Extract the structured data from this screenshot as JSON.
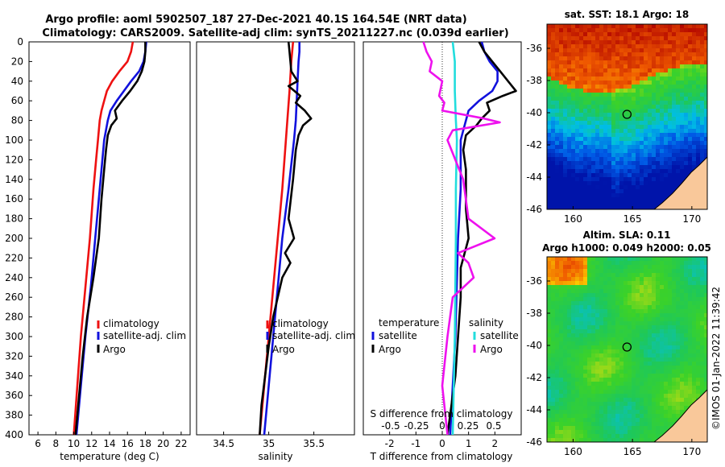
{
  "header": {
    "line1": "Argo profile: aoml 5902507_187 27-Dec-2021 40.1S 164.54E (NRT data)",
    "line2": "Climatology: CARS2009. Satellite-adj clim: synTS_20211227.nc (0.039d earlier)"
  },
  "colors": {
    "climatology": "#ee1111",
    "satellite": "#1111dd",
    "argo": "#000000",
    "sal_satellite": "#22dddd",
    "sal_argo": "#ee11ee"
  },
  "depth_ticks": [
    0,
    20,
    40,
    60,
    80,
    100,
    120,
    140,
    160,
    180,
    200,
    220,
    240,
    260,
    280,
    300,
    320,
    340,
    360,
    380,
    400
  ],
  "chart_data": [
    {
      "type": "line",
      "name": "temperature",
      "xlabel": "temperature (deg C)",
      "ylabel": "",
      "xlim": [
        5,
        23
      ],
      "ylim": [
        400,
        0
      ],
      "xticks": [
        6,
        8,
        10,
        12,
        14,
        16,
        18,
        20,
        22
      ],
      "legend": [
        "climatology",
        "satellite-adj. clim",
        "Argo"
      ],
      "series": [
        {
          "name": "climatology",
          "depth": [
            0,
            10,
            20,
            30,
            40,
            50,
            60,
            70,
            80,
            100,
            120,
            150,
            200,
            250,
            300,
            350,
            400
          ],
          "values": [
            16.6,
            16.4,
            16.0,
            15.1,
            14.3,
            13.7,
            13.4,
            13.1,
            12.9,
            12.7,
            12.5,
            12.2,
            11.8,
            11.3,
            10.8,
            10.4,
            10.0
          ]
        },
        {
          "name": "satellite-adj. clim",
          "depth": [
            0,
            10,
            20,
            30,
            40,
            50,
            60,
            70,
            80,
            100,
            120,
            150,
            200,
            250,
            300,
            350,
            400
          ],
          "values": [
            18.1,
            18.0,
            17.8,
            17.3,
            16.4,
            15.6,
            14.8,
            14.1,
            13.8,
            13.4,
            13.2,
            12.9,
            12.4,
            11.9,
            11.3,
            10.8,
            10.3
          ]
        },
        {
          "name": "Argo",
          "depth": [
            0,
            10,
            20,
            30,
            40,
            50,
            60,
            70,
            78,
            85,
            95,
            110,
            130,
            160,
            200,
            240,
            280,
            320,
            360,
            400
          ],
          "values": [
            18.0,
            18.0,
            17.9,
            17.6,
            17.1,
            16.3,
            15.4,
            14.6,
            14.8,
            14.2,
            13.8,
            13.6,
            13.4,
            13.1,
            12.8,
            12.2,
            11.5,
            11.0,
            10.6,
            10.2
          ]
        }
      ]
    },
    {
      "type": "line",
      "name": "salinity",
      "xlabel": "salinity",
      "ylabel": "",
      "xlim": [
        34.2,
        35.95
      ],
      "ylim": [
        400,
        0
      ],
      "xticks": [
        34.5,
        35,
        35.5
      ],
      "xtick_labels": [
        "34.5",
        "35",
        "35.5"
      ],
      "legend": [
        "climatology",
        "satellite-adj. clim",
        "Argo"
      ],
      "series": [
        {
          "name": "climatology",
          "depth": [
            0,
            20,
            50,
            100,
            150,
            200,
            250,
            300,
            350,
            400
          ],
          "values": [
            35.27,
            35.25,
            35.23,
            35.19,
            35.15,
            35.1,
            35.05,
            35.0,
            34.95,
            34.9
          ]
        },
        {
          "name": "satellite-adj. clim",
          "depth": [
            0,
            10,
            20,
            40,
            60,
            80,
            100,
            150,
            200,
            250,
            300,
            350,
            400
          ],
          "values": [
            35.34,
            35.34,
            35.33,
            35.32,
            35.31,
            35.3,
            35.28,
            35.22,
            35.15,
            35.1,
            35.05,
            35.0,
            34.95
          ]
        },
        {
          "name": "Argo",
          "depth": [
            0,
            10,
            20,
            30,
            40,
            45,
            55,
            62,
            70,
            78,
            85,
            95,
            110,
            140,
            180,
            200,
            215,
            225,
            240,
            260,
            280,
            310,
            340,
            370,
            400
          ],
          "values": [
            35.22,
            35.23,
            35.24,
            35.25,
            35.32,
            35.22,
            35.35,
            35.3,
            35.4,
            35.47,
            35.38,
            35.33,
            35.3,
            35.27,
            35.22,
            35.28,
            35.18,
            35.24,
            35.15,
            35.1,
            35.05,
            35.0,
            34.96,
            34.92,
            34.9
          ]
        }
      ]
    },
    {
      "type": "line",
      "name": "differences",
      "xlabel": "T difference from climatology",
      "xlabel_top": "S difference from climatology",
      "xlim": [
        -3,
        3
      ],
      "ylim": [
        400,
        0
      ],
      "xticks": [
        -2,
        -1,
        0,
        1,
        2
      ],
      "xticks_S": [
        "-0.5",
        "-0.25",
        "0",
        "0.25",
        "0.5"
      ],
      "legend_T": [
        "temperature",
        "satellite",
        "Argo"
      ],
      "legend_S": [
        "salinity",
        "satellite",
        "Argo"
      ],
      "series": [
        {
          "name": "T satellite",
          "depth": [
            0,
            10,
            20,
            30,
            40,
            50,
            60,
            70,
            80,
            90,
            100,
            150,
            200,
            300,
            400
          ],
          "values": [
            1.5,
            1.6,
            1.8,
            2.1,
            2.1,
            1.9,
            1.4,
            1.0,
            0.9,
            0.8,
            0.7,
            0.7,
            0.6,
            0.5,
            0.3
          ]
        },
        {
          "name": "T Argo",
          "depth": [
            0,
            10,
            20,
            30,
            40,
            50,
            55,
            62,
            70,
            78,
            85,
            95,
            110,
            130,
            170,
            200,
            230,
            260,
            300,
            340,
            400
          ],
          "values": [
            1.4,
            1.6,
            1.9,
            2.2,
            2.5,
            2.8,
            2.3,
            1.7,
            1.8,
            1.5,
            1.3,
            0.9,
            0.8,
            0.9,
            0.9,
            1.0,
            0.7,
            0.7,
            0.6,
            0.5,
            0.2
          ]
        },
        {
          "name": "S satellite",
          "depth": [
            0,
            20,
            50,
            80,
            100,
            150,
            200,
            300,
            400
          ],
          "values": [
            0.1,
            0.12,
            0.12,
            0.13,
            0.14,
            0.13,
            0.13,
            0.12,
            0.1
          ]
        },
        {
          "name": "S Argo",
          "depth": [
            0,
            10,
            20,
            30,
            40,
            55,
            62,
            70,
            78,
            82,
            90,
            100,
            140,
            180,
            200,
            215,
            225,
            240,
            260,
            300,
            350,
            400
          ],
          "values": [
            -0.18,
            -0.15,
            -0.1,
            -0.12,
            0.0,
            -0.03,
            0.02,
            0.0,
            0.4,
            0.55,
            0.1,
            0.05,
            0.2,
            0.25,
            0.5,
            0.15,
            0.25,
            0.3,
            0.1,
            0.05,
            0.0,
            0.05
          ]
        }
      ]
    },
    {
      "type": "heatmap",
      "name": "sst_map",
      "title": "sat. SST: 18.1 Argo: 18",
      "xticks": [
        160,
        165,
        170
      ],
      "yticks": [
        -36,
        -38,
        -40,
        -42,
        -44,
        -46
      ],
      "xlim": [
        157.8,
        171.3
      ],
      "ylim": [
        -46,
        -34.5
      ],
      "marker": {
        "lon": 164.54,
        "lat": -40.1
      }
    },
    {
      "type": "heatmap",
      "name": "sla_map",
      "title_line1": "Altim. SLA: 0.11",
      "title_line2": "Argo h1000: 0.049 h2000: 0.05",
      "xticks": [
        160,
        165,
        170
      ],
      "yticks": [
        -36,
        -38,
        -40,
        -42,
        -44,
        -46
      ],
      "xlim": [
        157.8,
        171.3
      ],
      "ylim": [
        -46,
        -34.5
      ],
      "marker": {
        "lon": 164.54,
        "lat": -40.1
      }
    }
  ],
  "credit": "©IMOS 01-Jan-2022 11:39:42"
}
